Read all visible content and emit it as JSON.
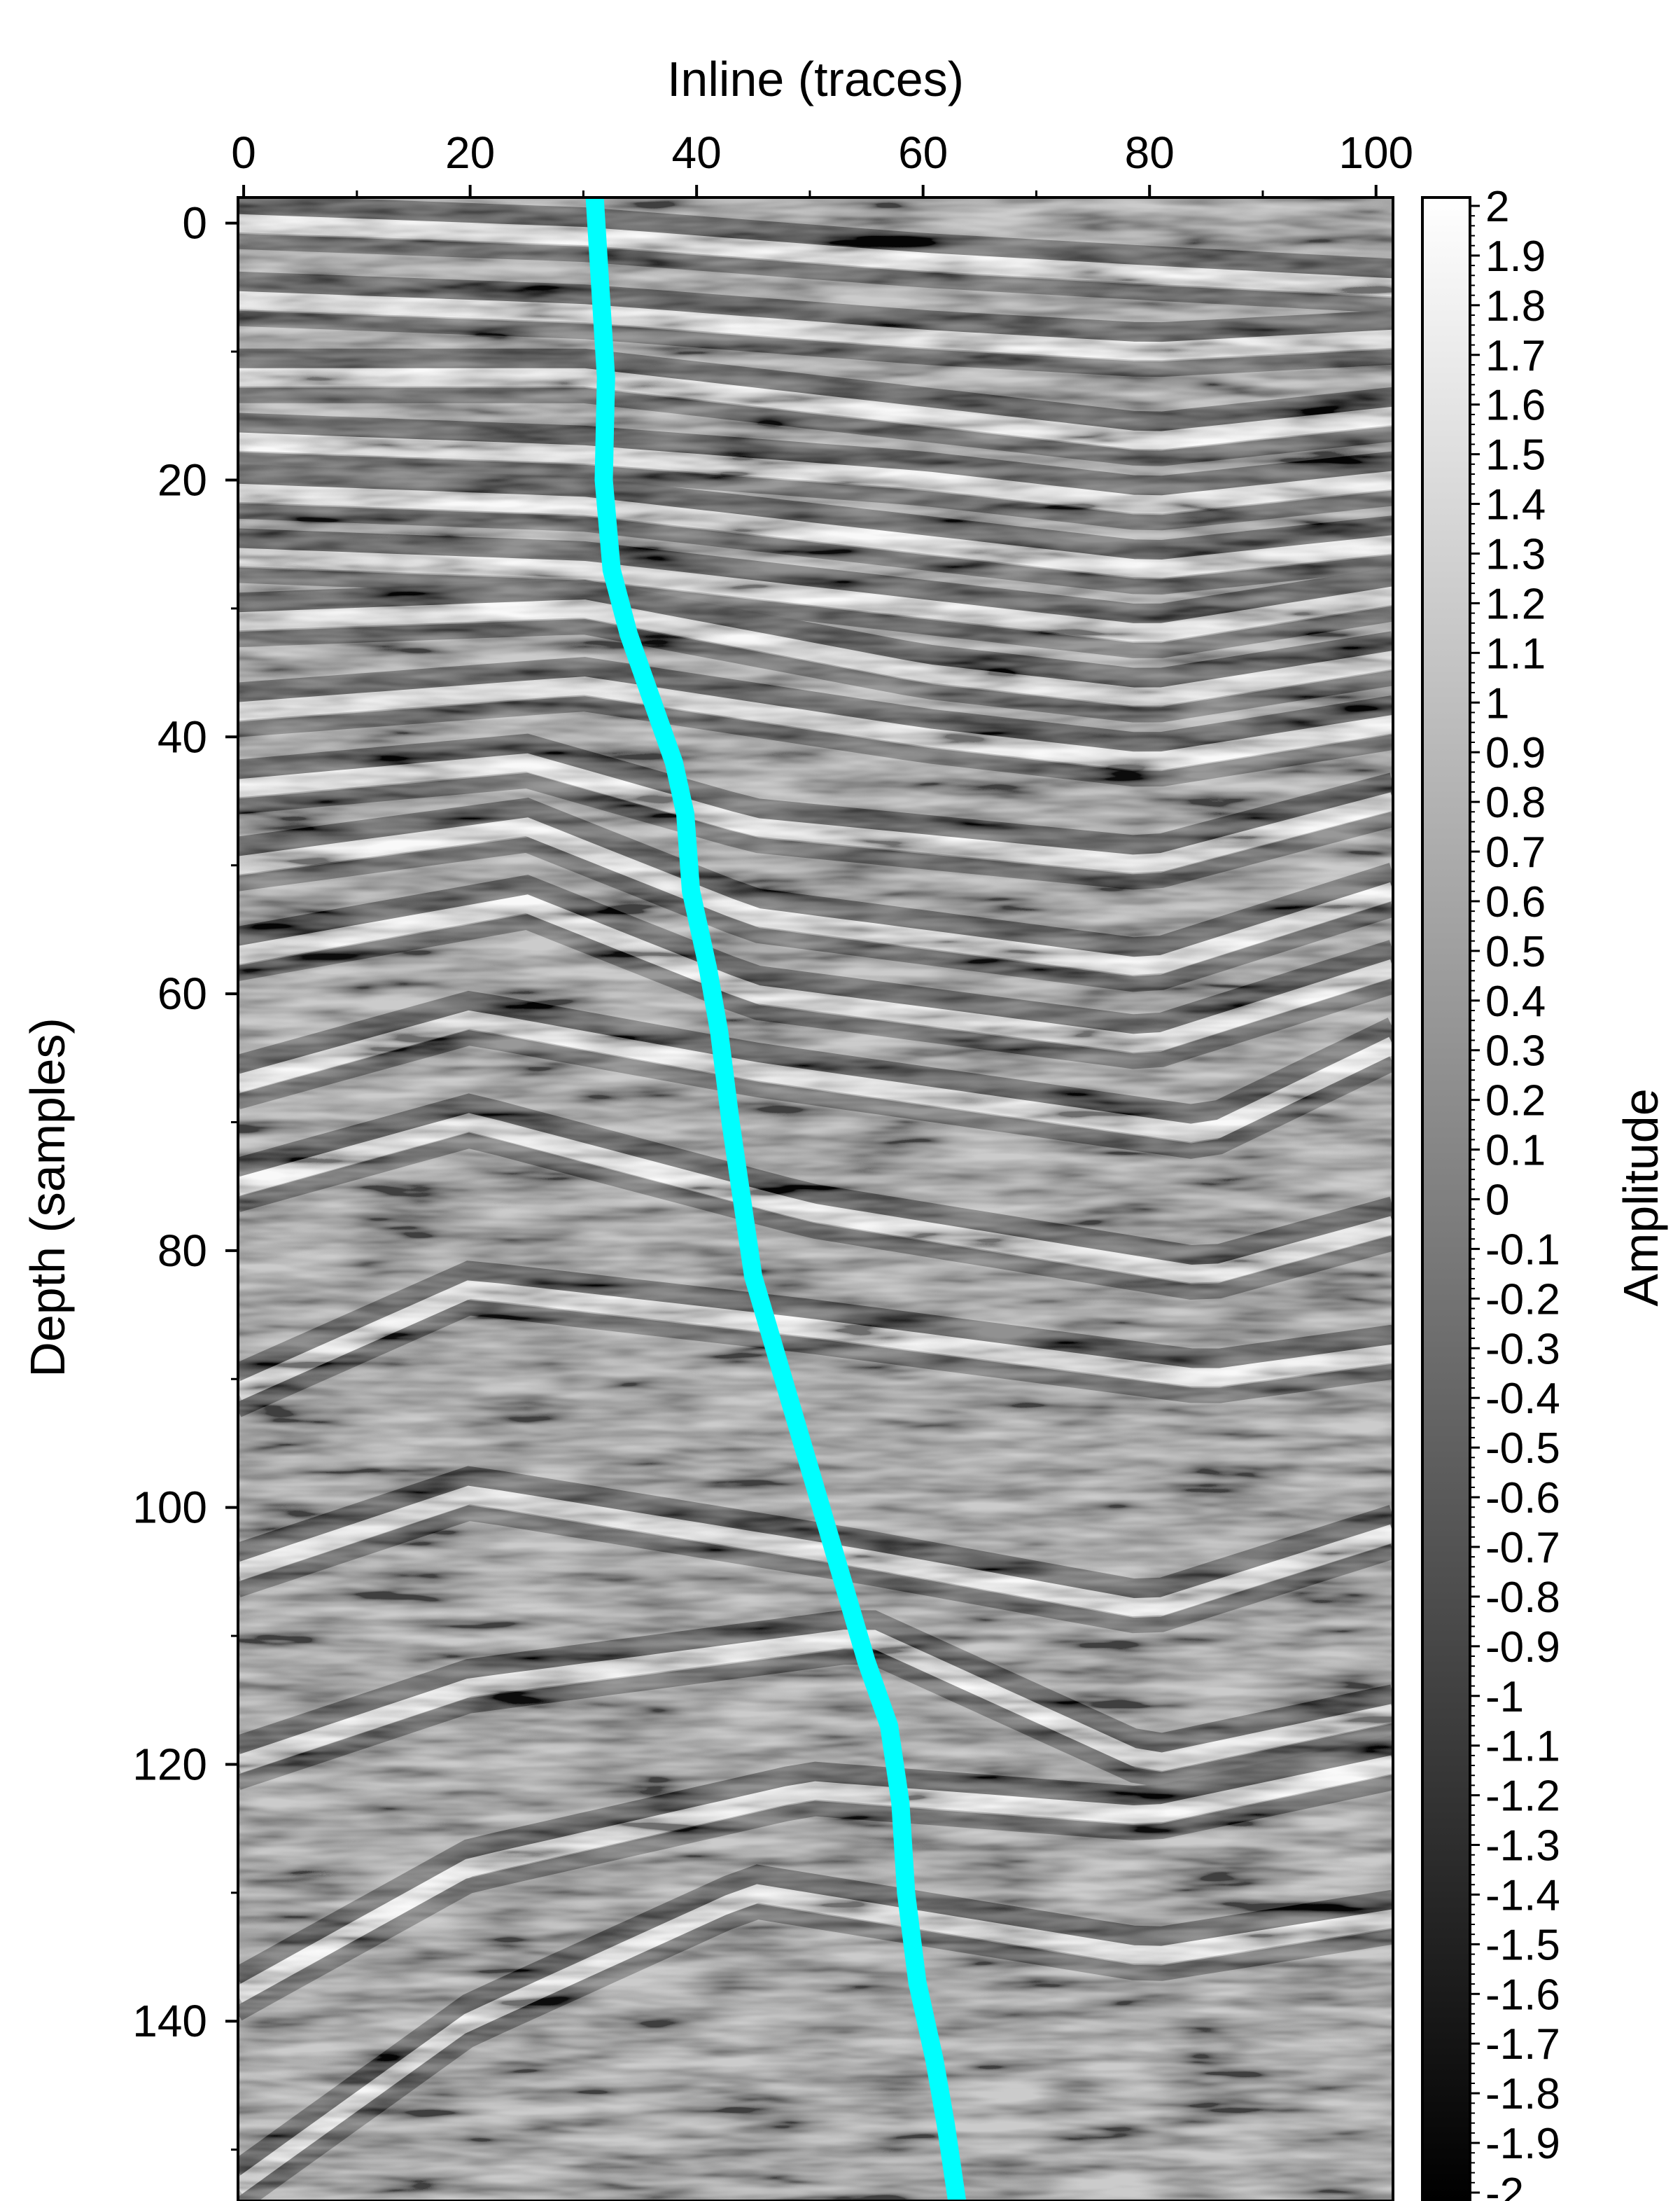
{
  "chart_data": {
    "type": "heatmap",
    "title": "",
    "xlabel": "Inline (traces)",
    "ylabel": "Depth (samples)",
    "xlim": [
      -0.5,
      101.5
    ],
    "ylim": [
      154,
      -2
    ],
    "x_ticks": [
      0,
      20,
      40,
      60,
      80,
      100
    ],
    "y_ticks": [
      0,
      20,
      40,
      60,
      80,
      100,
      120,
      140
    ],
    "x_axis_position": "top",
    "grid": false,
    "colormap": "gray",
    "colorbar": {
      "label": "Amplitude",
      "vmin": -2,
      "vmax": 2,
      "ticks": [
        "2",
        "1.9",
        "1.8",
        "1.7",
        "1.6",
        "1.5",
        "1.4",
        "1.3",
        "1.2",
        "1.1",
        "1",
        "0.9",
        "0.8",
        "0.7",
        "0.6",
        "0.5",
        "0.4",
        "0.3",
        "0.2",
        "0.1",
        "0",
        "-0.1",
        "-0.2",
        "-0.3",
        "-0.4",
        "-0.5",
        "-0.6",
        "-0.7",
        "-0.8",
        "-0.9",
        "-1",
        "-1.1",
        "-1.2",
        "-1.3",
        "-1.4",
        "-1.5",
        "-1.6",
        "-1.7",
        "-1.8",
        "-1.9",
        "-2"
      ]
    },
    "overlay_line": {
      "color": "#00ffff",
      "points": [
        [
          31,
          -2
        ],
        [
          31.5,
          5
        ],
        [
          32,
          12
        ],
        [
          31.8,
          20
        ],
        [
          32.5,
          27
        ],
        [
          34,
          32
        ],
        [
          36,
          37
        ],
        [
          38,
          42
        ],
        [
          39,
          46
        ],
        [
          39.5,
          52
        ],
        [
          41,
          58
        ],
        [
          42,
          63
        ],
        [
          43,
          70
        ],
        [
          44,
          76
        ],
        [
          45,
          82
        ],
        [
          47,
          88
        ],
        [
          49,
          94
        ],
        [
          51,
          100
        ],
        [
          53,
          106
        ],
        [
          55,
          112
        ],
        [
          57,
          117
        ],
        [
          58,
          123
        ],
        [
          58.5,
          130
        ],
        [
          59.5,
          137
        ],
        [
          61,
          143
        ],
        [
          62,
          148
        ],
        [
          63,
          154
        ]
      ]
    },
    "reflectors": [
      {
        "x": [
          -0.5,
          30,
          60,
          80,
          101.5
        ],
        "y": [
          0,
          1,
          3,
          4,
          5
        ]
      },
      {
        "x": [
          -0.5,
          30,
          60,
          80,
          101.5
        ],
        "y": [
          6,
          7,
          9,
          10,
          9
        ]
      },
      {
        "x": [
          -0.5,
          30,
          60,
          80,
          101.5
        ],
        "y": [
          12,
          12,
          15,
          17,
          15
        ]
      },
      {
        "x": [
          -0.5,
          30,
          60,
          80,
          101.5
        ],
        "y": [
          17,
          18,
          20,
          22,
          20
        ]
      },
      {
        "x": [
          -0.5,
          30,
          60,
          80,
          101.5
        ],
        "y": [
          21,
          22,
          25,
          27,
          25
        ]
      },
      {
        "x": [
          -0.5,
          30,
          60,
          80,
          101.5
        ],
        "y": [
          26,
          27,
          30,
          32,
          29
        ]
      },
      {
        "x": [
          -0.5,
          30,
          60,
          80,
          101.5
        ],
        "y": [
          31,
          30,
          35,
          37,
          34
        ]
      },
      {
        "x": [
          -0.5,
          30,
          60,
          80,
          101.5
        ],
        "y": [
          38,
          36,
          40,
          42,
          39
        ]
      },
      {
        "x": [
          -0.5,
          25,
          45,
          80,
          101.5
        ],
        "y": [
          44,
          42,
          47,
          50,
          45
        ]
      },
      {
        "x": [
          -0.5,
          25,
          45,
          80,
          101.5
        ],
        "y": [
          50,
          47,
          54,
          58,
          52
        ]
      },
      {
        "x": [
          -0.5,
          25,
          45,
          80,
          101.5
        ],
        "y": [
          57,
          53,
          60,
          64,
          58
        ]
      },
      {
        "x": [
          -0.5,
          20,
          45,
          85,
          101.5
        ],
        "y": [
          67,
          62,
          66,
          71,
          64
        ]
      },
      {
        "x": [
          -0.5,
          20,
          50,
          85,
          101.5
        ],
        "y": [
          75,
          70,
          77,
          82,
          78
        ]
      },
      {
        "x": [
          -0.5,
          20,
          50,
          85,
          101.5
        ],
        "y": [
          91,
          83,
          86,
          90,
          88
        ]
      },
      {
        "x": [
          -0.5,
          20,
          55,
          80,
          101.5
        ],
        "y": [
          105,
          99,
          104,
          108,
          102
        ]
      },
      {
        "x": [
          -0.5,
          20,
          55,
          80,
          101.5
        ],
        "y": [
          120,
          114,
          110,
          120,
          116
        ]
      },
      {
        "x": [
          -0.5,
          20,
          50,
          80,
          101.5
        ],
        "y": [
          138,
          128,
          122,
          124,
          120
        ]
      },
      {
        "x": [
          -0.5,
          20,
          45,
          80,
          101.5
        ],
        "y": [
          153,
          140,
          130,
          135,
          132
        ]
      }
    ]
  }
}
